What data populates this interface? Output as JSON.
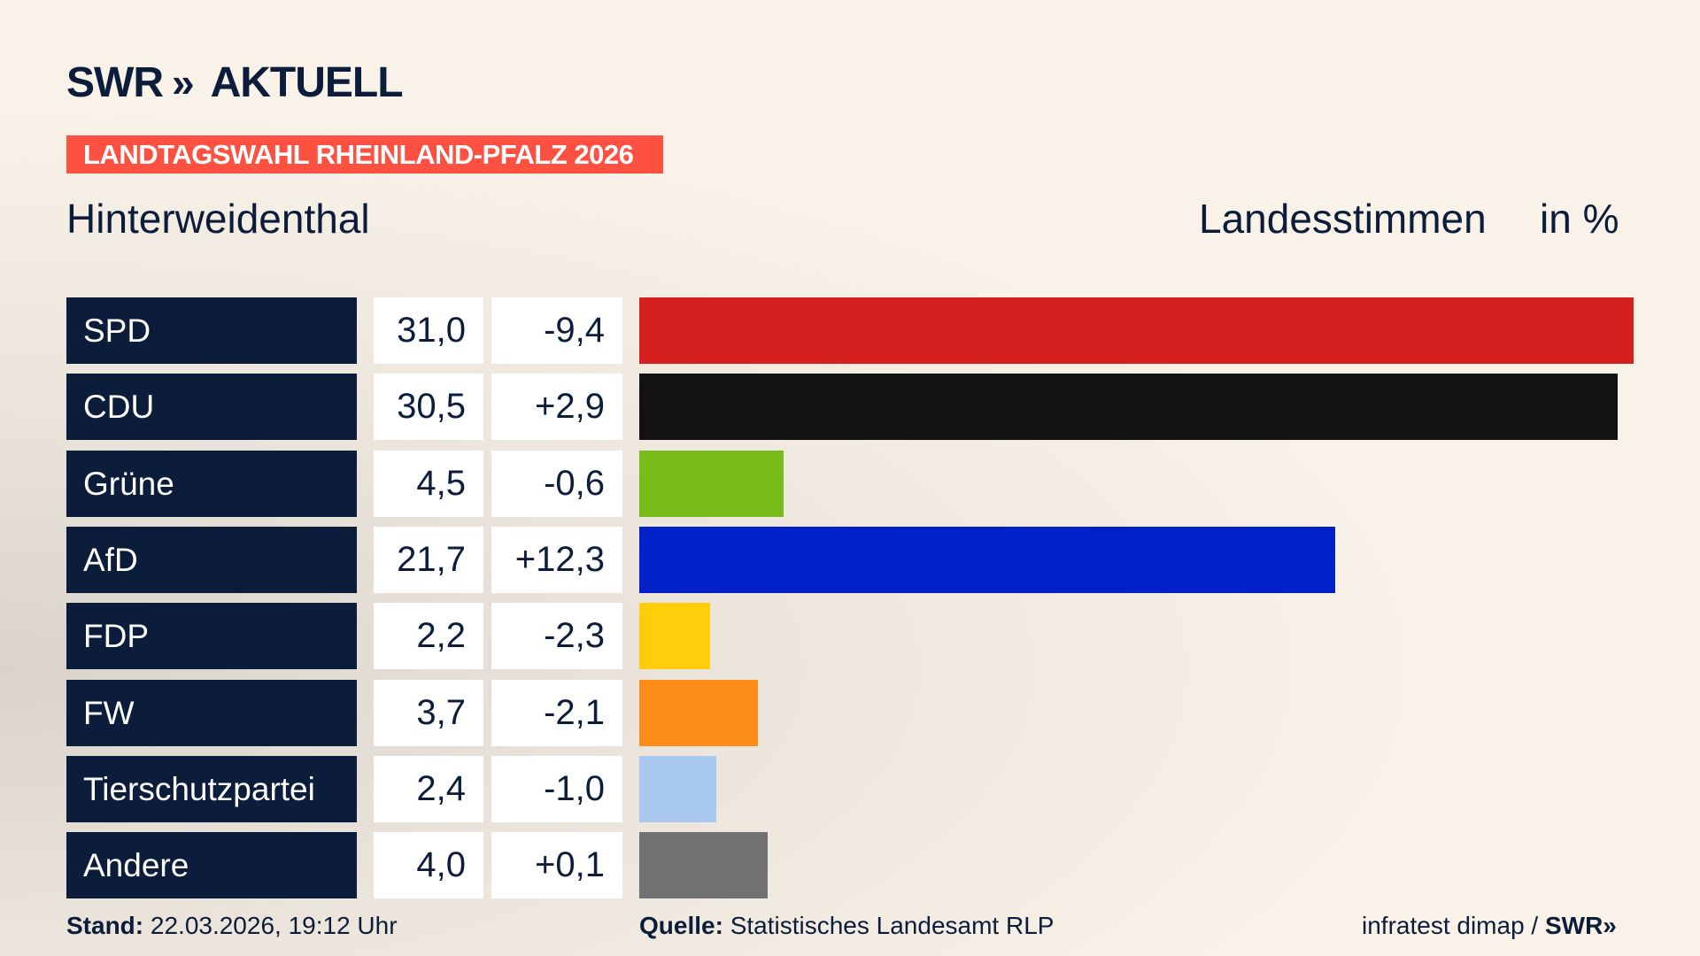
{
  "header": {
    "logo_text": "SWR",
    "logo_chevrons": "»",
    "logo_suffix": "AKTUELL",
    "banner": "LANDTAGSWAHL RHEINLAND-PFALZ 2026",
    "place": "Hinterweidenthal",
    "vote_type": "Landesstimmen",
    "unit": "in %"
  },
  "chart_data": {
    "type": "bar",
    "orientation": "horizontal",
    "categories": [
      "SPD",
      "CDU",
      "Grüne",
      "AfD",
      "FDP",
      "FW",
      "Tierschutzpartei",
      "Andere"
    ],
    "values": [
      31.0,
      30.5,
      4.5,
      21.7,
      2.2,
      3.7,
      2.4,
      4.0
    ],
    "value_labels": [
      "31,0",
      "30,5",
      "4,5",
      "21,7",
      "2,2",
      "3,7",
      "2,4",
      "4,0"
    ],
    "diff_labels": [
      "-9,4",
      "+2,9",
      "-0,6",
      "+12,3",
      "-2,3",
      "-2,1",
      "-1,0",
      "+0,1"
    ],
    "diffs": [
      -9.4,
      2.9,
      -0.6,
      12.3,
      -2.3,
      -2.1,
      -1.0,
      0.1
    ],
    "colors": [
      "#d61f1f",
      "#121212",
      "#78bc1b",
      "#0020c8",
      "#ffcd0a",
      "#fe8c19",
      "#a9c8f0",
      "#707173"
    ],
    "xlim": [
      0,
      31.0
    ]
  },
  "footer": {
    "stand_label": "Stand:",
    "stand_value": "22.03.2026, 19:12 Uhr",
    "source_label": "Quelle:",
    "source_value": "Statistisches Landesamt RLP",
    "credit": "infratest dimap /",
    "credit_logo": "SWR»"
  }
}
